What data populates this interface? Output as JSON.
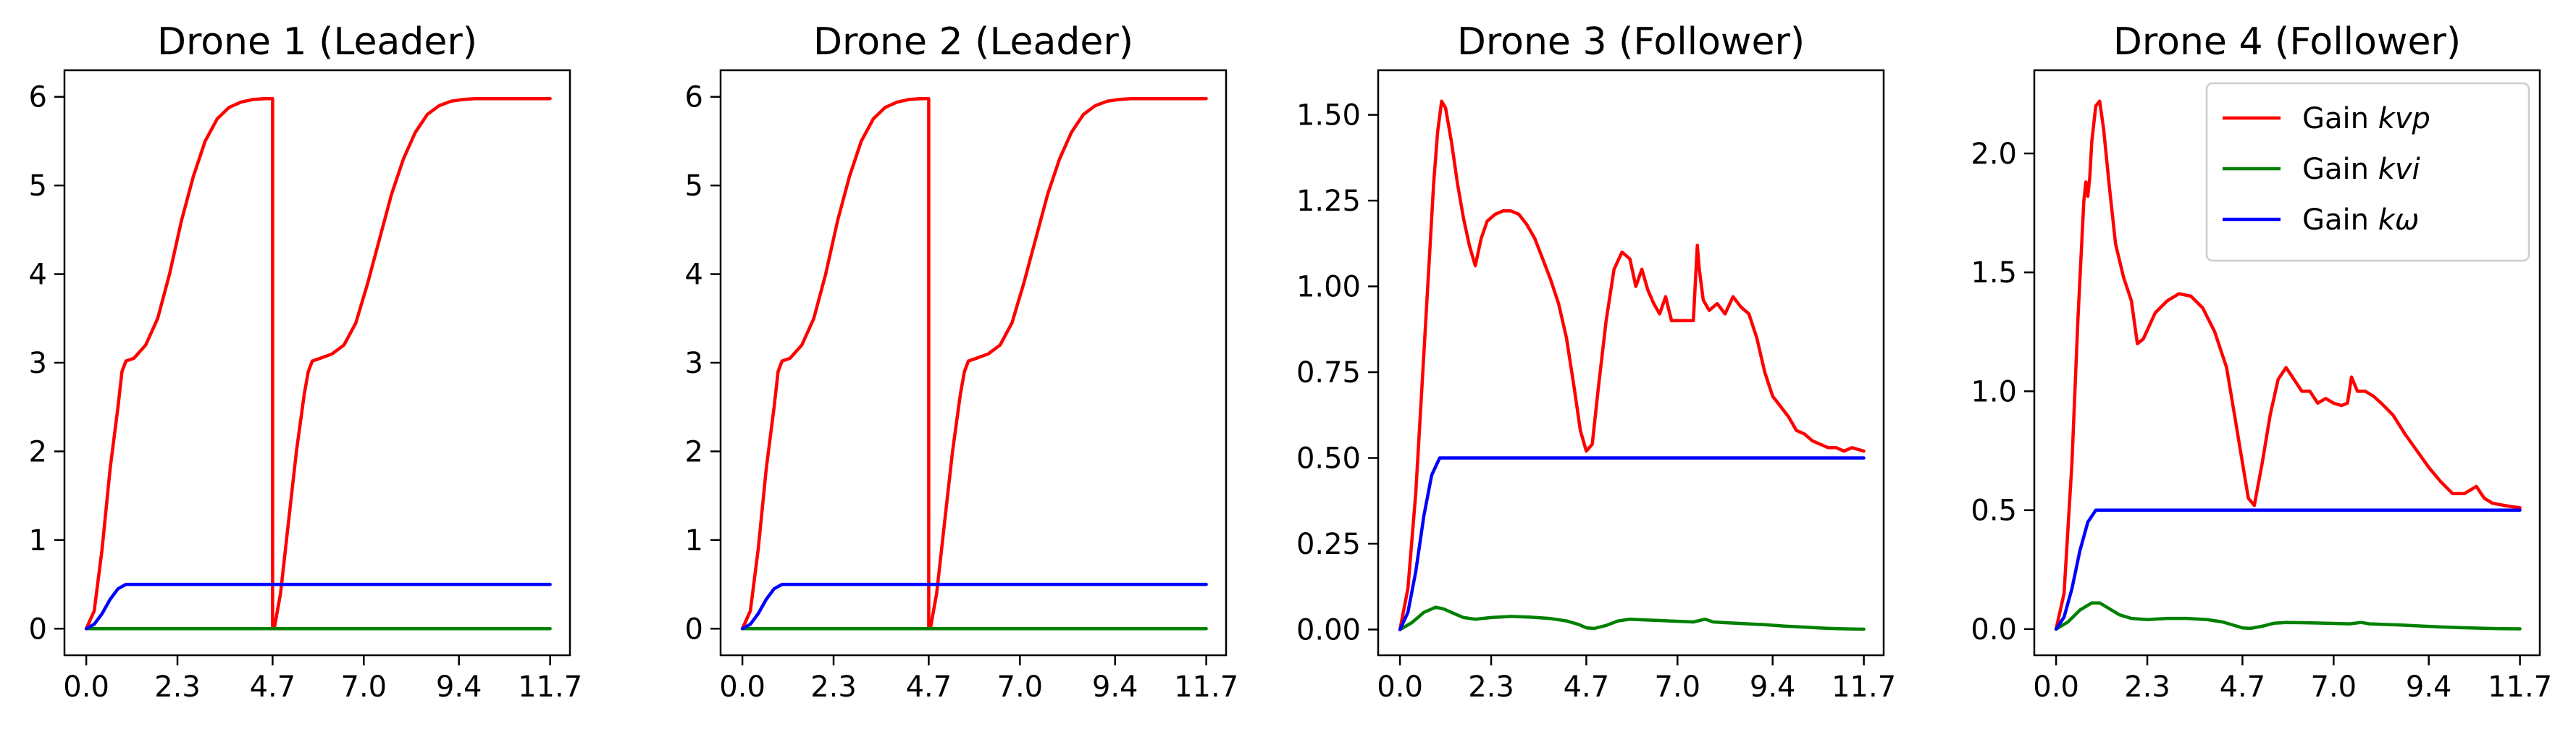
{
  "colors": {
    "kvp": "#ff0000",
    "kvi": "#008000",
    "kw": "#0000ff",
    "axes": "#000000",
    "background": "#ffffff"
  },
  "chart_data": [
    {
      "type": "line",
      "title": "Drone 1 (Leader)",
      "xlabel": "",
      "ylabel": "",
      "xlim": [
        -0.55,
        12.2
      ],
      "ylim": [
        -0.3,
        6.3
      ],
      "xticks": [
        0.0,
        2.3,
        4.7,
        7.0,
        9.4,
        11.7
      ],
      "xtick_labels": [
        "0.0",
        "2.3",
        "4.7",
        "7.0",
        "9.4",
        "11.7"
      ],
      "yticks": [
        0,
        1,
        2,
        3,
        4,
        5,
        6
      ],
      "ytick_labels": [
        "0",
        "1",
        "2",
        "3",
        "4",
        "5",
        "6"
      ],
      "grid": false,
      "series": [
        {
          "key": "kvp",
          "x": [
            0,
            0.2,
            0.4,
            0.6,
            0.8,
            0.9,
            1.0,
            1.2,
            1.5,
            1.8,
            2.1,
            2.4,
            2.7,
            3.0,
            3.3,
            3.6,
            3.9,
            4.2,
            4.5,
            4.7,
            4.7,
            4.75,
            4.9,
            5.1,
            5.3,
            5.5,
            5.6,
            5.7,
            5.9,
            6.2,
            6.5,
            6.8,
            7.1,
            7.4,
            7.7,
            8.0,
            8.3,
            8.6,
            8.9,
            9.2,
            9.5,
            9.8,
            10.1,
            10.4,
            10.7,
            11.0,
            11.3,
            11.7
          ],
          "y": [
            0,
            0.2,
            0.9,
            1.8,
            2.5,
            2.9,
            3.02,
            3.05,
            3.2,
            3.5,
            4.0,
            4.6,
            5.1,
            5.5,
            5.75,
            5.88,
            5.94,
            5.97,
            5.98,
            5.98,
            0.02,
            0.02,
            0.4,
            1.2,
            2.0,
            2.65,
            2.9,
            3.02,
            3.05,
            3.1,
            3.2,
            3.45,
            3.9,
            4.4,
            4.9,
            5.3,
            5.6,
            5.8,
            5.9,
            5.95,
            5.97,
            5.98,
            5.98,
            5.98,
            5.98,
            5.98,
            5.98,
            5.98
          ]
        },
        {
          "key": "kvi",
          "x": [
            0,
            11.7
          ],
          "y": [
            0,
            0
          ]
        },
        {
          "key": "kw",
          "x": [
            0,
            0.2,
            0.4,
            0.6,
            0.8,
            1.0,
            1.2,
            11.7
          ],
          "y": [
            0,
            0.05,
            0.17,
            0.33,
            0.45,
            0.5,
            0.5,
            0.5
          ]
        }
      ]
    },
    {
      "type": "line",
      "title": "Drone 2 (Leader)",
      "xlabel": "",
      "ylabel": "",
      "xlim": [
        -0.55,
        12.2
      ],
      "ylim": [
        -0.3,
        6.3
      ],
      "xticks": [
        0.0,
        2.3,
        4.7,
        7.0,
        9.4,
        11.7
      ],
      "xtick_labels": [
        "0.0",
        "2.3",
        "4.7",
        "7.0",
        "9.4",
        "11.7"
      ],
      "yticks": [
        0,
        1,
        2,
        3,
        4,
        5,
        6
      ],
      "ytick_labels": [
        "0",
        "1",
        "2",
        "3",
        "4",
        "5",
        "6"
      ],
      "grid": false,
      "series": [
        {
          "key": "kvp",
          "x": [
            0,
            0.2,
            0.4,
            0.6,
            0.8,
            0.9,
            1.0,
            1.2,
            1.5,
            1.8,
            2.1,
            2.4,
            2.7,
            3.0,
            3.3,
            3.6,
            3.9,
            4.2,
            4.5,
            4.7,
            4.7,
            4.75,
            4.9,
            5.1,
            5.3,
            5.5,
            5.6,
            5.7,
            5.9,
            6.2,
            6.5,
            6.8,
            7.1,
            7.4,
            7.7,
            8.0,
            8.3,
            8.6,
            8.9,
            9.2,
            9.5,
            9.8,
            10.1,
            10.4,
            10.7,
            11.0,
            11.3,
            11.7
          ],
          "y": [
            0,
            0.2,
            0.9,
            1.8,
            2.5,
            2.9,
            3.02,
            3.05,
            3.2,
            3.5,
            4.0,
            4.6,
            5.1,
            5.5,
            5.75,
            5.88,
            5.94,
            5.97,
            5.98,
            5.98,
            0.02,
            0.02,
            0.4,
            1.2,
            2.0,
            2.65,
            2.9,
            3.02,
            3.05,
            3.1,
            3.2,
            3.45,
            3.9,
            4.4,
            4.9,
            5.3,
            5.6,
            5.8,
            5.9,
            5.95,
            5.97,
            5.98,
            5.98,
            5.98,
            5.98,
            5.98,
            5.98,
            5.98
          ]
        },
        {
          "key": "kvi",
          "x": [
            0,
            11.7
          ],
          "y": [
            0,
            0
          ]
        },
        {
          "key": "kw",
          "x": [
            0,
            0.2,
            0.4,
            0.6,
            0.8,
            1.0,
            1.2,
            11.7
          ],
          "y": [
            0,
            0.05,
            0.17,
            0.33,
            0.45,
            0.5,
            0.5,
            0.5
          ]
        }
      ]
    },
    {
      "type": "line",
      "title": "Drone 3 (Follower)",
      "xlabel": "",
      "ylabel": "",
      "xlim": [
        -0.55,
        12.2
      ],
      "ylim": [
        -0.075,
        1.63
      ],
      "xticks": [
        0.0,
        2.3,
        4.7,
        7.0,
        9.4,
        11.7
      ],
      "xtick_labels": [
        "0.0",
        "2.3",
        "4.7",
        "7.0",
        "9.4",
        "11.7"
      ],
      "yticks": [
        0.0,
        0.25,
        0.5,
        0.75,
        1.0,
        1.25,
        1.5
      ],
      "ytick_labels": [
        "0.00",
        "0.25",
        "0.50",
        "0.75",
        "1.00",
        "1.25",
        "1.50"
      ],
      "grid": false,
      "series": [
        {
          "key": "kvp",
          "x": [
            0,
            0.2,
            0.4,
            0.6,
            0.75,
            0.85,
            0.95,
            1.05,
            1.15,
            1.3,
            1.45,
            1.6,
            1.75,
            1.9,
            2.05,
            2.2,
            2.4,
            2.6,
            2.8,
            3.0,
            3.2,
            3.4,
            3.6,
            3.8,
            4.0,
            4.2,
            4.4,
            4.55,
            4.7,
            4.85,
            5.0,
            5.2,
            5.4,
            5.6,
            5.8,
            5.95,
            6.1,
            6.25,
            6.4,
            6.55,
            6.7,
            6.85,
            7.0,
            7.2,
            7.4,
            7.5,
            7.55,
            7.65,
            7.8,
            8.0,
            8.2,
            8.4,
            8.6,
            8.8,
            9.0,
            9.2,
            9.4,
            9.6,
            9.8,
            10.0,
            10.2,
            10.4,
            10.6,
            10.8,
            11.0,
            11.2,
            11.4,
            11.7
          ],
          "y": [
            0,
            0.12,
            0.4,
            0.8,
            1.1,
            1.3,
            1.45,
            1.54,
            1.52,
            1.42,
            1.3,
            1.2,
            1.12,
            1.06,
            1.14,
            1.19,
            1.21,
            1.22,
            1.22,
            1.21,
            1.18,
            1.14,
            1.08,
            1.02,
            0.95,
            0.85,
            0.7,
            0.58,
            0.52,
            0.54,
            0.7,
            0.9,
            1.05,
            1.1,
            1.08,
            1.0,
            1.05,
            0.99,
            0.95,
            0.92,
            0.97,
            0.9,
            0.9,
            0.9,
            0.9,
            1.12,
            1.05,
            0.96,
            0.93,
            0.95,
            0.92,
            0.97,
            0.94,
            0.92,
            0.85,
            0.75,
            0.68,
            0.65,
            0.62,
            0.58,
            0.57,
            0.55,
            0.54,
            0.53,
            0.53,
            0.52,
            0.53,
            0.52
          ]
        },
        {
          "key": "kvi",
          "x": [
            0,
            0.3,
            0.6,
            0.9,
            1.1,
            1.3,
            1.6,
            1.9,
            2.3,
            2.8,
            3.3,
            3.8,
            4.2,
            4.5,
            4.7,
            4.9,
            5.2,
            5.5,
            5.8,
            6.2,
            6.8,
            7.4,
            7.7,
            7.9,
            8.2,
            8.7,
            9.2,
            9.7,
            10.2,
            10.7,
            11.2,
            11.7
          ],
          "y": [
            0,
            0.02,
            0.05,
            0.065,
            0.06,
            0.05,
            0.035,
            0.03,
            0.035,
            0.038,
            0.036,
            0.032,
            0.025,
            0.015,
            0.005,
            0.003,
            0.012,
            0.025,
            0.03,
            0.028,
            0.025,
            0.022,
            0.03,
            0.022,
            0.02,
            0.017,
            0.014,
            0.01,
            0.007,
            0.004,
            0.002,
            0.001
          ]
        },
        {
          "key": "kw",
          "x": [
            0,
            0.2,
            0.4,
            0.6,
            0.8,
            1.0,
            1.2,
            11.7
          ],
          "y": [
            0,
            0.05,
            0.17,
            0.33,
            0.45,
            0.5,
            0.5,
            0.5
          ]
        }
      ]
    },
    {
      "type": "line",
      "title": "Drone 4 (Follower)",
      "xlabel": "",
      "ylabel": "",
      "xlim": [
        -0.55,
        12.2
      ],
      "ylim": [
        -0.11,
        2.35
      ],
      "xticks": [
        0.0,
        2.3,
        4.7,
        7.0,
        9.4,
        11.7
      ],
      "xtick_labels": [
        "0.0",
        "2.3",
        "4.7",
        "7.0",
        "9.4",
        "11.7"
      ],
      "yticks": [
        0.0,
        0.5,
        1.0,
        1.5,
        2.0
      ],
      "ytick_labels": [
        "0.0",
        "0.5",
        "1.0",
        "1.5",
        "2.0"
      ],
      "grid": false,
      "legend": {
        "position": "upper right",
        "entries": [
          {
            "key": "kvp",
            "prefix": "Gain ",
            "symbol": "kvp"
          },
          {
            "key": "kvi",
            "prefix": "Gain ",
            "symbol": "kvi"
          },
          {
            "key": "kw",
            "prefix": "Gain ",
            "symbol": "kω"
          }
        ]
      },
      "series": [
        {
          "key": "kvp",
          "x": [
            0,
            0.2,
            0.4,
            0.55,
            0.7,
            0.75,
            0.8,
            0.85,
            0.9,
            1.0,
            1.1,
            1.2,
            1.35,
            1.5,
            1.7,
            1.9,
            2.05,
            2.2,
            2.5,
            2.8,
            3.1,
            3.4,
            3.7,
            4.0,
            4.3,
            4.5,
            4.7,
            4.85,
            5.0,
            5.2,
            5.4,
            5.6,
            5.8,
            6.0,
            6.2,
            6.4,
            6.6,
            6.8,
            7.0,
            7.2,
            7.35,
            7.45,
            7.6,
            7.8,
            8.0,
            8.2,
            8.5,
            8.8,
            9.1,
            9.4,
            9.7,
            10.0,
            10.3,
            10.6,
            10.8,
            11.0,
            11.3,
            11.7
          ],
          "y": [
            0,
            0.15,
            0.7,
            1.3,
            1.8,
            1.88,
            1.82,
            1.9,
            2.05,
            2.2,
            2.22,
            2.1,
            1.85,
            1.62,
            1.48,
            1.38,
            1.2,
            1.22,
            1.33,
            1.38,
            1.41,
            1.4,
            1.35,
            1.25,
            1.1,
            0.9,
            0.7,
            0.55,
            0.52,
            0.7,
            0.9,
            1.05,
            1.1,
            1.05,
            1.0,
            1.0,
            0.95,
            0.97,
            0.95,
            0.94,
            0.95,
            1.06,
            1.0,
            1.0,
            0.98,
            0.95,
            0.9,
            0.82,
            0.75,
            0.68,
            0.62,
            0.57,
            0.57,
            0.6,
            0.55,
            0.53,
            0.52,
            0.51
          ]
        },
        {
          "key": "kvi",
          "x": [
            0,
            0.3,
            0.6,
            0.9,
            1.1,
            1.3,
            1.6,
            1.9,
            2.3,
            2.8,
            3.3,
            3.8,
            4.2,
            4.5,
            4.7,
            4.9,
            5.2,
            5.5,
            5.8,
            6.2,
            6.8,
            7.4,
            7.7,
            7.9,
            8.2,
            8.7,
            9.2,
            9.7,
            10.2,
            10.7,
            11.2,
            11.7
          ],
          "y": [
            0,
            0.03,
            0.08,
            0.11,
            0.11,
            0.09,
            0.06,
            0.045,
            0.04,
            0.045,
            0.045,
            0.04,
            0.03,
            0.015,
            0.005,
            0.003,
            0.012,
            0.025,
            0.028,
            0.027,
            0.025,
            0.022,
            0.028,
            0.022,
            0.02,
            0.017,
            0.013,
            0.009,
            0.006,
            0.004,
            0.002,
            0.001
          ]
        },
        {
          "key": "kw",
          "x": [
            0,
            0.2,
            0.4,
            0.6,
            0.8,
            1.0,
            1.2,
            11.7
          ],
          "y": [
            0,
            0.05,
            0.17,
            0.33,
            0.45,
            0.5,
            0.5,
            0.5
          ]
        }
      ]
    }
  ]
}
